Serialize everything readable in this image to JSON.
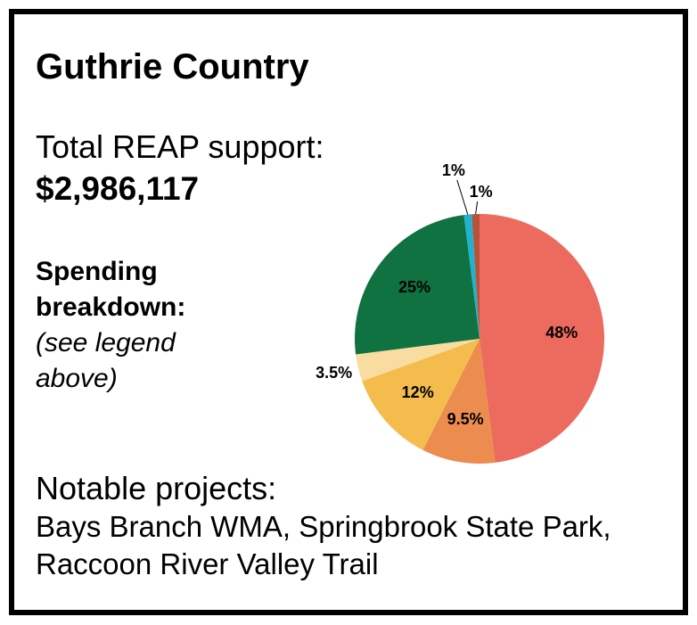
{
  "header": {
    "title": "Guthrie Country"
  },
  "support": {
    "label": "Total REAP support:",
    "amount": "$2,986,117"
  },
  "breakdown": {
    "label": "Spending breakdown:",
    "note": "(see legend above)"
  },
  "projects": {
    "label": "Notable projects:",
    "text": "Bays Branch WMA, Springbrook State Park, Raccoon River Valley Trail"
  },
  "chart_data": {
    "type": "pie",
    "values": [
      48,
      9.5,
      12,
      3.5,
      25,
      1,
      1
    ],
    "value_labels": [
      "48%",
      "9.5%",
      "12%",
      "3.5%",
      "25%",
      "1%",
      "1%"
    ],
    "colors": [
      "#ec6b5e",
      "#ec8c4e",
      "#f4bc4c",
      "#f9dca0",
      "#0f7240",
      "#1fb3d1",
      "#b5533c"
    ]
  }
}
